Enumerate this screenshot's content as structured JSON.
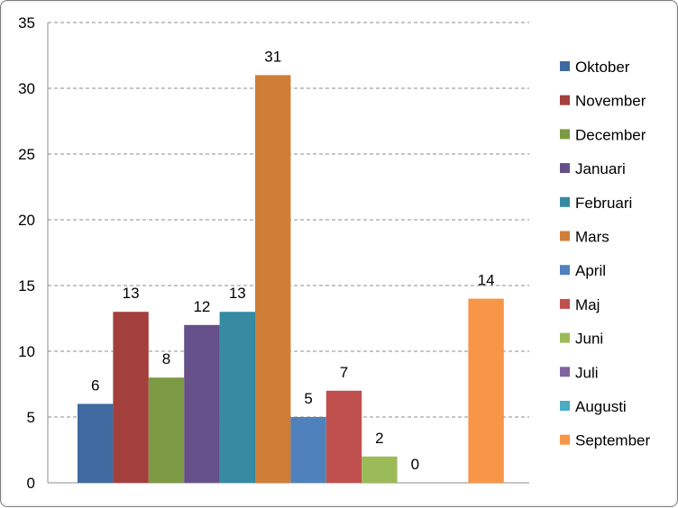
{
  "chart_data": {
    "type": "bar",
    "categories": [
      "Oktober",
      "November",
      "December",
      "Januari",
      "Februari",
      "Mars",
      "April",
      "Maj",
      "Juni",
      "Juli",
      "Augusti",
      "September"
    ],
    "values": [
      6,
      13,
      8,
      12,
      13,
      31,
      5,
      7,
      2,
      0,
      0,
      14
    ],
    "data_labels": [
      "6",
      "13",
      "8",
      "12",
      "13",
      "31",
      "5",
      "7",
      "2",
      "0",
      "",
      "14"
    ],
    "colors": [
      "#3e6aa0",
      "#a33f3c",
      "#7c9a43",
      "#65508a",
      "#368aa1",
      "#d07d37",
      "#4f81bd",
      "#c0504d",
      "#9bbb59",
      "#8064a2",
      "#4bacc6",
      "#f79646"
    ],
    "ylim": [
      0,
      35
    ],
    "yticks": [
      0,
      5,
      10,
      15,
      20,
      25,
      30,
      35
    ],
    "grid": true,
    "legend_position": "right",
    "title": "",
    "xlabel": "",
    "ylabel": ""
  }
}
